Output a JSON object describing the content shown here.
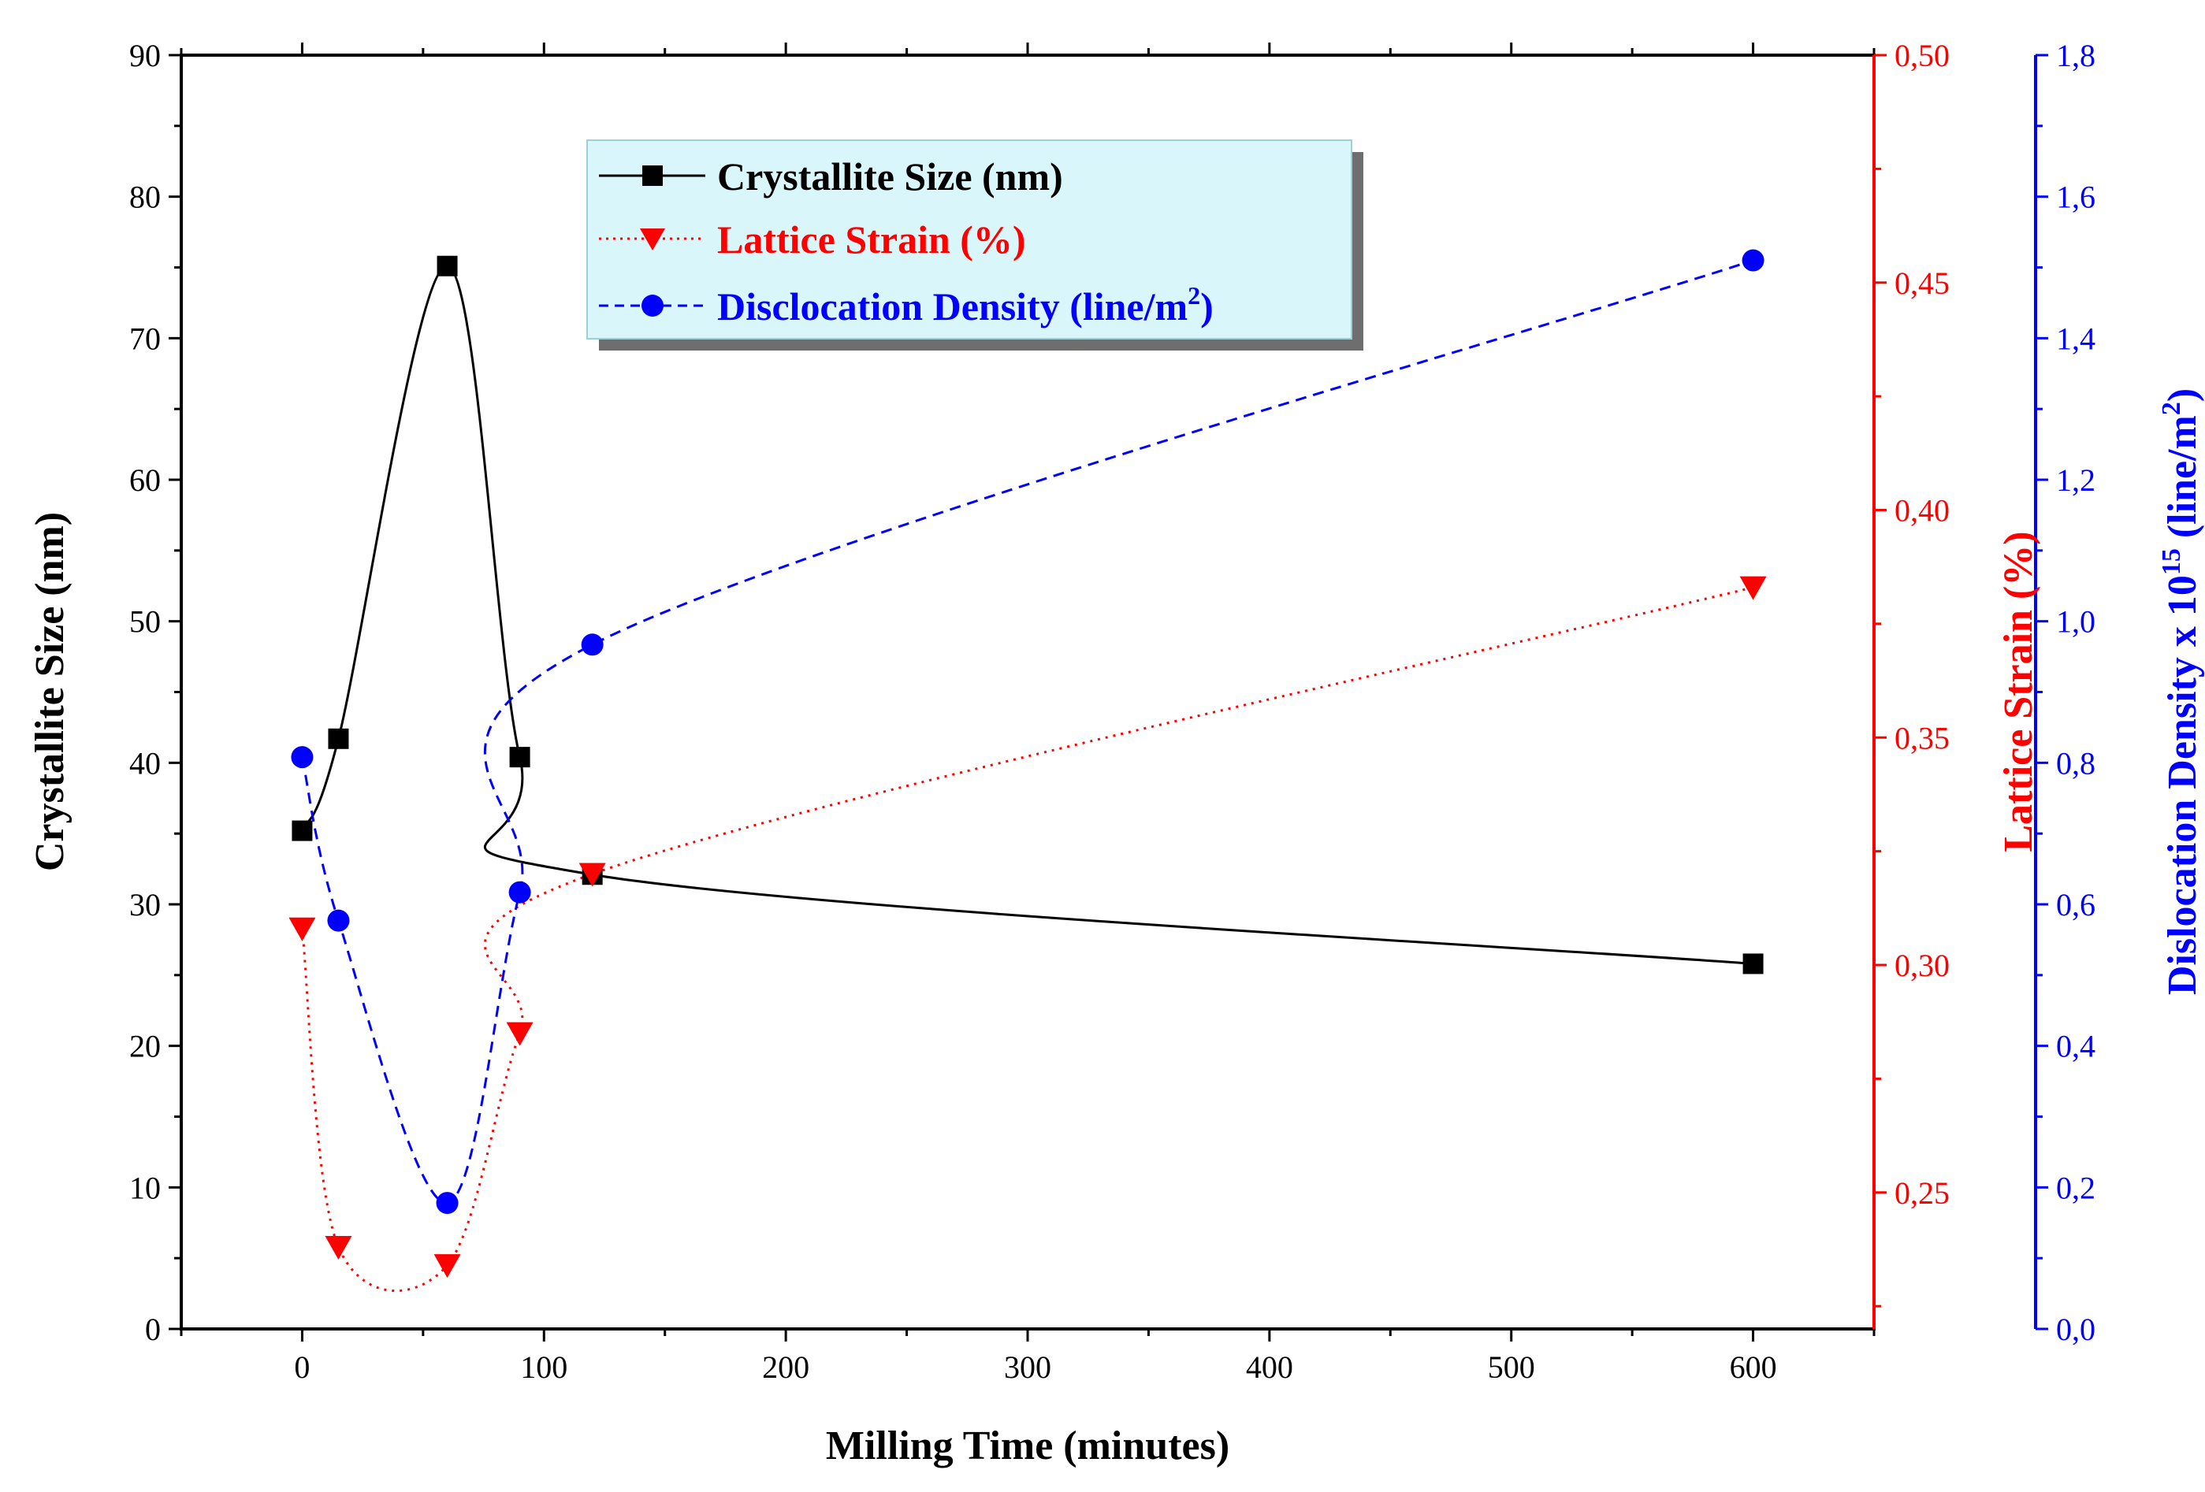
{
  "chart_data": {
    "type": "line",
    "xlabel": "Milling Time (minutes)",
    "xlim": [
      -50,
      650
    ],
    "x_ticks": [
      0,
      100,
      200,
      300,
      400,
      500,
      600
    ],
    "x_tick_labels": [
      "0",
      "100",
      "200",
      "300",
      "400",
      "500",
      "600"
    ],
    "axes": {
      "left": {
        "label": "Crystallite Size (nm)",
        "range": [
          0,
          90
        ],
        "ticks": [
          0,
          10,
          20,
          30,
          40,
          50,
          60,
          70,
          80,
          90
        ],
        "tick_labels": [
          "0",
          "10",
          "20",
          "30",
          "40",
          "50",
          "60",
          "70",
          "80",
          "90"
        ],
        "color": "#000000"
      },
      "right1": {
        "label": "Lattice Strain (%)",
        "range": [
          0.22,
          0.5
        ],
        "ticks": [
          0.25,
          0.3,
          0.35,
          0.4,
          0.45,
          0.5
        ],
        "tick_labels": [
          "0,25",
          "0,30",
          "0,35",
          "0,40",
          "0,45",
          "0,50"
        ],
        "color": "#ff0000"
      },
      "right2": {
        "label_main": "Dislocation Density x 10",
        "label_sup": "15",
        "label_tail": " (line/m",
        "label_sup2": "2",
        "label_end": ")",
        "range": [
          0.0,
          1.8
        ],
        "ticks": [
          0.0,
          0.2,
          0.4,
          0.6,
          0.8,
          1.0,
          1.2,
          1.4,
          1.6,
          1.8
        ],
        "tick_labels": [
          "0,0",
          "0,2",
          "0,4",
          "0,6",
          "0,8",
          "1,0",
          "1,2",
          "1,4",
          "1,6",
          "1,8"
        ],
        "color": "#0000ff"
      }
    },
    "series": [
      {
        "name": "Crystallite Size (nm)",
        "axis": "left",
        "marker": "square",
        "line": "solid",
        "color": "#000000",
        "x": [
          0,
          15,
          60,
          90,
          120,
          600
        ],
        "values": [
          35.2,
          41.7,
          75.1,
          40.4,
          32.1,
          25.8
        ]
      },
      {
        "name": "Lattice Strain (%)",
        "axis": "right1",
        "marker": "triangle-down",
        "line": "dotted",
        "color": "#ff0000",
        "x": [
          0,
          15,
          60,
          90,
          120,
          600
        ],
        "values": [
          0.308,
          0.238,
          0.234,
          0.285,
          0.32,
          0.383
        ]
      },
      {
        "name": "Disclocation Density (line/m",
        "name_sup": "2",
        "name_end": ")",
        "axis": "right2",
        "marker": "circle",
        "line": "dashed",
        "color": "#0000ff",
        "x": [
          0,
          15,
          60,
          90,
          120,
          600
        ],
        "values": [
          0.808,
          0.577,
          0.178,
          0.617,
          0.967,
          1.51
        ]
      }
    ],
    "legend": {
      "placement": "top-center",
      "background": "#d9f7fb",
      "entries": [
        "Crystallite Size (nm)",
        "Lattice Strain (%)",
        "Disclocation Density (line/m2)"
      ]
    }
  }
}
